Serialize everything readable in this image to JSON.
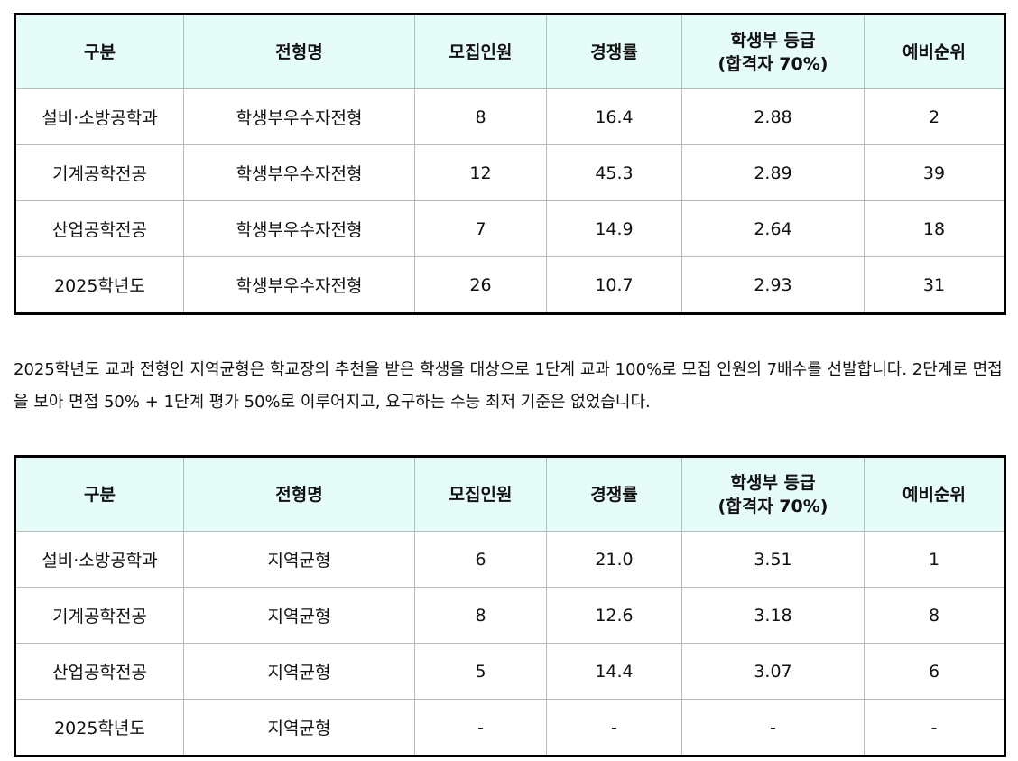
{
  "headers": [
    "구분",
    "전형명",
    "모집인원",
    "경쟁률",
    "학생부 등급\n(합격자 70%)",
    "예비순위"
  ],
  "table1": [
    [
      "설비·소방공학과",
      "학생부우수자전형",
      "8",
      "16.4",
      "2.88",
      "2"
    ],
    [
      "기계공학전공",
      "학생부우수자전형",
      "12",
      "45.3",
      "2.89",
      "39"
    ],
    [
      "산업공학전공",
      "학생부우수자전형",
      "7",
      "14.9",
      "2.64",
      "18"
    ],
    [
      "2025학년도",
      "학생부우수자전형",
      "26",
      "10.7",
      "2.93",
      "31"
    ]
  ],
  "paragraph": "2025학년도 교과 전형인 지역균형은 학교장의 추천을 받은 학생을 대상으로 1단계 교과 100%로 모집 인원의 7배수를 선발합니다. 2단계로 면접을 보아 면접 50% + 1단계 평가 50%로 이루어지고, 요구하는 수능 최저 기준은 없었습니다.",
  "table2": [
    [
      "설비·소방공학과",
      "지역균형",
      "6",
      "21.0",
      "3.51",
      "1"
    ],
    [
      "기계공학전공",
      "지역균형",
      "8",
      "12.6",
      "3.18",
      "8"
    ],
    [
      "산업공학전공",
      "지역균형",
      "5",
      "14.4",
      "3.07",
      "6"
    ],
    [
      "2025학년도",
      "지역균형",
      "-",
      "-",
      "-",
      "-"
    ]
  ],
  "colors": {
    "header_bg": "#e6fcf9",
    "outer_border": "#000000",
    "inner_border": "#bbbbbb"
  }
}
